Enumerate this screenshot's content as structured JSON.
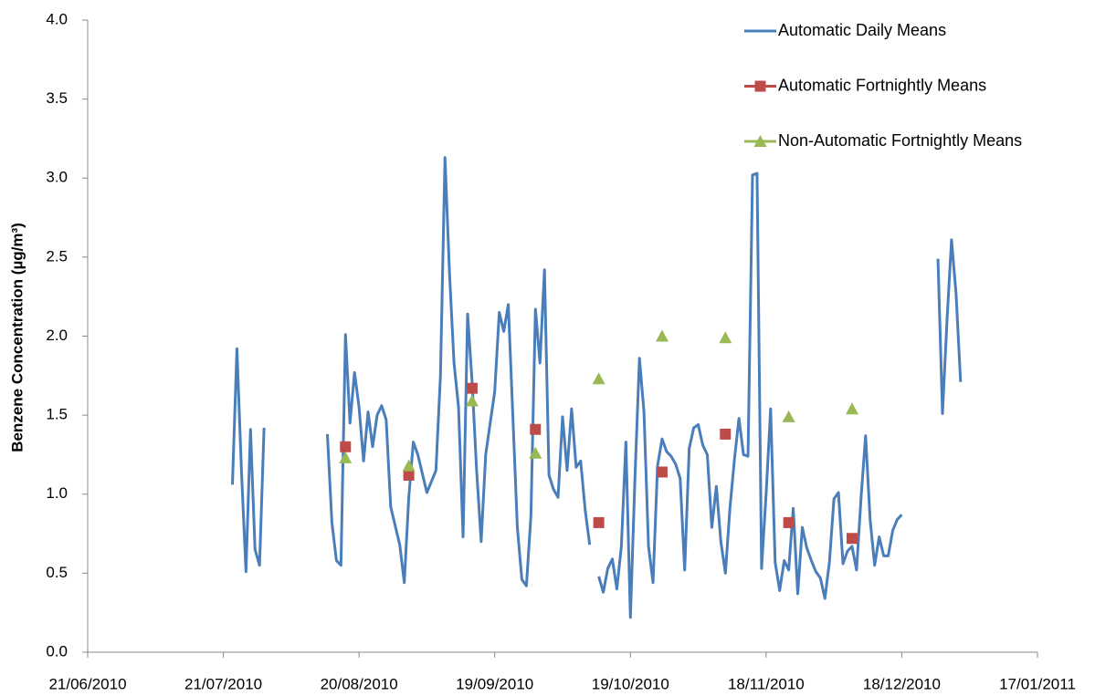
{
  "chart_data": {
    "type": "line",
    "y_label": "Benzene Concentration (µg/m³)",
    "xlim": [
      "2010-06-21",
      "2011-01-17"
    ],
    "xticks": [
      {
        "value": "2010-06-21",
        "label": "21/06/2010"
      },
      {
        "value": "2010-07-21",
        "label": "21/07/2010"
      },
      {
        "value": "2010-08-20",
        "label": "20/08/2010"
      },
      {
        "value": "2010-09-19",
        "label": "19/09/2010"
      },
      {
        "value": "2010-10-19",
        "label": "19/10/2010"
      },
      {
        "value": "2010-11-18",
        "label": "18/11/2010"
      },
      {
        "value": "2010-12-18",
        "label": "18/12/2010"
      },
      {
        "value": "2011-01-17",
        "label": "17/01/2011"
      }
    ],
    "ylim": [
      0,
      4
    ],
    "yticks": [
      {
        "value": 0,
        "label": "0.0"
      },
      0.5,
      {
        "value": 1,
        "label": "1.0"
      },
      1.5,
      {
        "value": 2,
        "label": "2.0"
      },
      2.5,
      {
        "value": 3,
        "label": "3.0"
      },
      3.5,
      {
        "value": 4,
        "label": "4.0"
      }
    ],
    "grid": false,
    "legend": "top-right",
    "series": [
      {
        "name": "Automatic Daily Means",
        "color": "#4a7ebb",
        "marker": "none",
        "x": [
          "2010-07-23",
          "2010-07-24",
          "2010-07-25",
          "2010-07-26",
          "2010-07-27",
          "2010-07-28",
          "2010-07-29",
          "2010-07-30",
          "2010-08-05",
          "2010-08-13",
          "2010-08-14",
          "2010-08-15",
          "2010-08-16",
          "2010-08-17",
          "2010-08-18",
          "2010-08-19",
          "2010-08-20",
          "2010-08-21",
          "2010-08-22",
          "2010-08-23",
          "2010-08-24",
          "2010-08-25",
          "2010-08-26",
          "2010-08-27",
          "2010-08-28",
          "2010-08-29",
          "2010-08-30",
          "2010-08-31",
          "2010-09-01",
          "2010-09-02",
          "2010-09-03",
          "2010-09-04",
          "2010-09-05",
          "2010-09-06",
          "2010-09-07",
          "2010-09-08",
          "2010-09-09",
          "2010-09-10",
          "2010-09-11",
          "2010-09-12",
          "2010-09-13",
          "2010-09-14",
          "2010-09-15",
          "2010-09-16",
          "2010-09-17",
          "2010-09-18",
          "2010-09-19",
          "2010-09-20",
          "2010-09-21",
          "2010-09-22",
          "2010-09-23",
          "2010-09-24",
          "2010-09-25",
          "2010-09-26",
          "2010-09-27",
          "2010-09-28",
          "2010-09-29",
          "2010-09-30",
          "2010-10-01",
          "2010-10-02",
          "2010-10-03",
          "2010-10-04",
          "2010-10-05",
          "2010-10-06",
          "2010-10-07",
          "2010-10-08",
          "2010-10-09",
          "2010-10-10",
          "2010-10-11",
          "2010-10-12",
          "2010-10-13",
          "2010-10-14",
          "2010-10-15",
          "2010-10-16",
          "2010-10-17",
          "2010-10-18",
          "2010-10-19",
          "2010-10-20",
          "2010-10-21",
          "2010-10-22",
          "2010-10-23",
          "2010-10-24",
          "2010-10-25",
          "2010-10-26",
          "2010-10-27",
          "2010-10-28",
          "2010-10-29",
          "2010-10-30",
          "2010-10-31",
          "2010-11-01",
          "2010-11-02",
          "2010-11-03",
          "2010-11-04",
          "2010-11-05",
          "2010-11-06",
          "2010-11-07",
          "2010-11-08",
          "2010-11-09",
          "2010-11-10",
          "2010-11-11",
          "2010-11-12",
          "2010-11-13",
          "2010-11-14",
          "2010-11-15",
          "2010-11-16",
          "2010-11-17",
          "2010-11-18",
          "2010-11-19",
          "2010-11-20",
          "2010-11-21",
          "2010-11-22",
          "2010-11-23",
          "2010-11-24",
          "2010-11-25",
          "2010-11-26",
          "2010-11-27",
          "2010-11-28",
          "2010-11-29",
          "2010-11-30",
          "2010-12-01",
          "2010-12-02",
          "2010-12-03",
          "2010-12-04",
          "2010-12-05",
          "2010-12-06",
          "2010-12-07",
          "2010-12-08",
          "2010-12-09",
          "2010-12-10",
          "2010-12-11",
          "2010-12-12",
          "2010-12-13",
          "2010-12-14",
          "2010-12-15",
          "2010-12-16",
          "2010-12-17",
          "2010-12-18",
          "2010-12-22",
          "2010-12-26",
          "2010-12-27",
          "2010-12-28",
          "2010-12-29",
          "2010-12-30",
          "2010-12-31"
        ],
        "values": [
          1.06,
          1.92,
          1.15,
          0.51,
          1.41,
          0.65,
          0.55,
          1.42,
          null,
          1.38,
          0.82,
          0.58,
          0.55,
          2.01,
          1.45,
          1.77,
          1.55,
          1.21,
          1.52,
          1.3,
          1.5,
          1.56,
          1.47,
          0.92,
          0.8,
          0.68,
          0.44,
          0.98,
          1.33,
          1.25,
          1.13,
          1.01,
          1.08,
          1.15,
          1.75,
          3.13,
          2.4,
          1.83,
          1.55,
          0.73,
          2.14,
          1.71,
          1.15,
          0.7,
          1.25,
          1.45,
          1.65,
          2.15,
          2.03,
          2.2,
          1.5,
          0.79,
          0.46,
          0.42,
          0.86,
          2.17,
          1.83,
          2.42,
          1.12,
          1.03,
          0.98,
          1.49,
          1.15,
          1.54,
          1.17,
          1.21,
          0.9,
          0.68,
          null,
          0.48,
          0.38,
          0.53,
          0.59,
          0.4,
          0.67,
          1.33,
          0.22,
          1.1,
          1.86,
          1.52,
          0.67,
          0.44,
          1.18,
          1.35,
          1.27,
          1.24,
          1.19,
          1.1,
          0.52,
          1.29,
          1.42,
          1.44,
          1.31,
          1.25,
          0.79,
          1.05,
          0.7,
          0.5,
          0.91,
          1.22,
          1.48,
          1.25,
          1.24,
          3.02,
          3.03,
          0.53,
          1.0,
          1.54,
          0.57,
          0.39,
          0.58,
          0.52,
          0.91,
          0.37,
          0.79,
          0.66,
          0.58,
          0.51,
          0.47,
          0.34,
          0.57,
          0.97,
          1.01,
          0.56,
          0.64,
          0.67,
          0.52,
          0.98,
          1.37,
          0.84,
          0.55,
          0.73,
          0.61,
          0.61,
          0.77,
          0.84,
          0.87,
          null,
          2.49,
          1.51,
          2.1,
          2.61,
          2.27,
          1.71
        ]
      },
      {
        "name": "Automatic Fortnightly Means",
        "color": "#be4b48",
        "marker": "square",
        "x": [
          "2010-08-17",
          "2010-08-31",
          "2010-09-14",
          "2010-09-28",
          "2010-10-12",
          "2010-10-26",
          "2010-11-09",
          "2010-11-23",
          "2010-12-07"
        ],
        "values": [
          1.3,
          1.12,
          1.67,
          1.41,
          0.82,
          1.14,
          1.38,
          0.82,
          0.72
        ]
      },
      {
        "name": "Non-Automatic Fortnightly Means",
        "color": "#98b954",
        "marker": "triangle",
        "x": [
          "2010-08-17",
          "2010-08-31",
          "2010-09-14",
          "2010-09-28",
          "2010-10-12",
          "2010-10-26",
          "2010-11-09",
          "2010-11-23",
          "2010-12-07"
        ],
        "values": [
          1.23,
          1.18,
          1.59,
          1.26,
          1.73,
          2.0,
          1.99,
          1.49,
          1.54
        ]
      }
    ]
  }
}
